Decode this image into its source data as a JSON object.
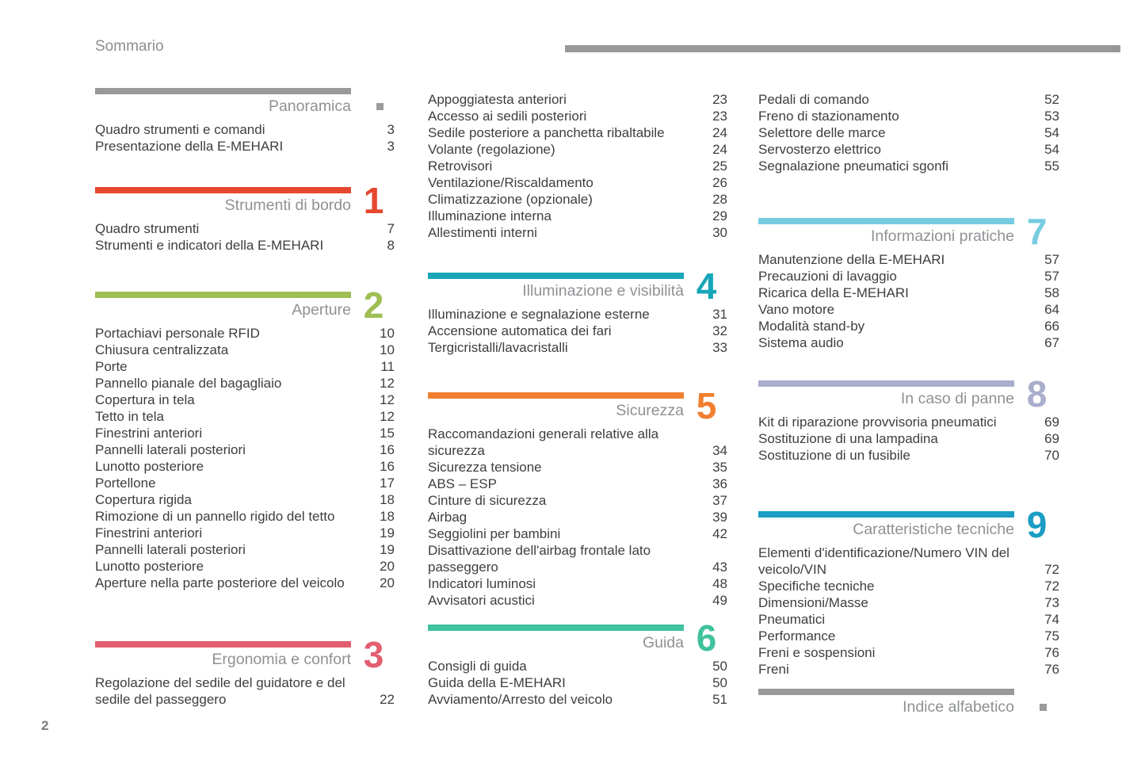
{
  "header": {
    "title": "Sommario"
  },
  "footer": {
    "page_number": "2"
  },
  "colors": {
    "rule_gray": "#97989a",
    "title_gray": "#8e9194",
    "text_dark": "#3d3e40"
  },
  "columns": [
    {
      "blocks": [
        {
          "type": "section",
          "id": "panoramica",
          "title": "Panoramica",
          "marker": "square",
          "accent": "#98999B",
          "items": [
            {
              "label": "Quadro strumenti e comandi",
              "page": "3"
            },
            {
              "label": "Presentazione della E-MEHARI",
              "page": "3"
            }
          ]
        },
        {
          "type": "section",
          "id": "strumenti-di-bordo",
          "title": "Strumenti di bordo",
          "number": "1",
          "accent": "#E5472F",
          "items": [
            {
              "label": "Quadro strumenti",
              "page": "7"
            },
            {
              "label": "Strumenti e indicatori della E-MEHARI",
              "page": "8"
            }
          ]
        },
        {
          "type": "section",
          "id": "aperture",
          "title": "Aperture",
          "number": "2",
          "accent": "#9FBE53",
          "items": [
            {
              "label": "Portachiavi personale RFID",
              "page": "10"
            },
            {
              "label": "Chiusura centralizzata",
              "page": "10"
            },
            {
              "label": "Porte",
              "page": "11"
            },
            {
              "label": "Pannello pianale del bagagliaio",
              "page": "12"
            },
            {
              "label": "Copertura in tela",
              "page": "12"
            },
            {
              "label": "Tetto in tela",
              "page": "12"
            },
            {
              "label": "Finestrini anteriori",
              "page": "15"
            },
            {
              "label": "Pannelli laterali posteriori",
              "page": "16"
            },
            {
              "label": "Lunotto posteriore",
              "page": "16"
            },
            {
              "label": "Portellone",
              "page": "17"
            },
            {
              "label": "Copertura rigida",
              "page": "18"
            },
            {
              "label": "Rimozione di un pannello rigido del tetto",
              "page": "18"
            },
            {
              "label": "Finestrini anteriori",
              "page": "19"
            },
            {
              "label": "Pannelli laterali posteriori",
              "page": "19"
            },
            {
              "label": "Lunotto posteriore",
              "page": "20"
            },
            {
              "label": "Aperture nella parte posteriore del veicolo",
              "page": "20"
            }
          ]
        },
        {
          "type": "section",
          "id": "ergonomia-e-confort",
          "title": "Ergonomia e confort",
          "number": "3",
          "accent": "#E25E70",
          "items": [
            {
              "label": "Regolazione del sedile del guidatore e del sedile del passeggero",
              "page": "22"
            }
          ]
        }
      ]
    },
    {
      "blocks": [
        {
          "type": "items",
          "items": [
            {
              "label": "Appoggiatesta anteriori",
              "page": "23"
            },
            {
              "label": "Accesso ai sedili posteriori",
              "page": "23"
            },
            {
              "label": "Sedile posteriore a panchetta ribaltabile",
              "page": "24"
            },
            {
              "label": "Volante (regolazione)",
              "page": "24"
            },
            {
              "label": "Retrovisori",
              "page": "25"
            },
            {
              "label": "Ventilazione/Riscaldamento",
              "page": "26"
            },
            {
              "label": "Climatizzazione (opzionale)",
              "page": "28"
            },
            {
              "label": "Illuminazione interna",
              "page": "29"
            },
            {
              "label": "Allestimenti interni",
              "page": "30"
            }
          ]
        },
        {
          "type": "section",
          "id": "illuminazione-e-visibilita",
          "title": "Illuminazione e visibilità",
          "number": "4",
          "accent": "#15A6B8",
          "items": [
            {
              "label": "Illuminazione e segnalazione esterne",
              "page": "31"
            },
            {
              "label": "Accensione automatica dei fari",
              "page": "32"
            },
            {
              "label": "Tergicristalli/lavacristalli",
              "page": "33"
            }
          ]
        },
        {
          "type": "section",
          "id": "sicurezza",
          "title": "Sicurezza",
          "number": "5",
          "accent": "#F0802F",
          "items": [
            {
              "label": "Raccomandazioni generali relative alla sicurezza",
              "page": "34"
            },
            {
              "label": "Sicurezza tensione",
              "page": "35"
            },
            {
              "label": "ABS – ESP",
              "page": "36"
            },
            {
              "label": "Cinture di sicurezza",
              "page": "37"
            },
            {
              "label": "Airbag",
              "page": "39"
            },
            {
              "label": "Seggiolini per bambini",
              "page": "42"
            },
            {
              "label": "Disattivazione dell'airbag frontale lato passeggero",
              "page": "43"
            },
            {
              "label": "Indicatori luminosi",
              "page": "48"
            },
            {
              "label": "Avvisatori acustici",
              "page": "49"
            }
          ]
        },
        {
          "type": "section",
          "id": "guida",
          "title": "Guida",
          "number": "6",
          "accent": "#3FC29D",
          "items": [
            {
              "label": "Consigli di guida",
              "page": "50"
            },
            {
              "label": "Guida della E-MEHARI",
              "page": "50"
            },
            {
              "label": "Avviamento/Arresto del veicolo",
              "page": "51"
            }
          ]
        }
      ]
    },
    {
      "blocks": [
        {
          "type": "items",
          "items": [
            {
              "label": "Pedali di comando",
              "page": "52"
            },
            {
              "label": "Freno di stazionamento",
              "page": "53"
            },
            {
              "label": "Selettore delle marce",
              "page": "54"
            },
            {
              "label": "Servosterzo elettrico",
              "page": "54"
            },
            {
              "label": "Segnalazione pneumatici sgonfi",
              "page": "55"
            }
          ]
        },
        {
          "type": "section",
          "id": "informazioni-pratiche",
          "title": "Informazioni pratiche",
          "number": "7",
          "accent": "#76CCE0",
          "items": [
            {
              "label": "Manutenzione della E-MEHARI",
              "page": "57"
            },
            {
              "label": "Precauzioni di lavaggio",
              "page": "57"
            },
            {
              "label": "Ricarica della E-MEHARI",
              "page": "58"
            },
            {
              "label": "Vano motore",
              "page": "64"
            },
            {
              "label": "Modalità stand-by",
              "page": "66"
            },
            {
              "label": "Sistema audio",
              "page": "67"
            }
          ]
        },
        {
          "type": "section",
          "id": "in-caso-di-panne",
          "title": "In caso di panne",
          "number": "8",
          "accent": "#A9AECC",
          "items": [
            {
              "label": "Kit di riparazione provvisoria pneumatici",
              "page": "69"
            },
            {
              "label": "Sostituzione di una lampadina",
              "page": "69"
            },
            {
              "label": "Sostituzione di un fusibile",
              "page": "70"
            }
          ]
        },
        {
          "type": "section",
          "id": "caratteristiche-tecniche",
          "title": "Caratteristiche tecniche",
          "number": "9",
          "accent": "#1B9DC4",
          "items": [
            {
              "label": "Elementi d'identificazione/Numero VIN del veicolo/VIN",
              "page": "72"
            },
            {
              "label": "Specifiche tecniche",
              "page": "72"
            },
            {
              "label": "Dimensioni/Masse",
              "page": "73"
            },
            {
              "label": "Pneumatici",
              "page": "74"
            },
            {
              "label": "Performance",
              "page": "75"
            },
            {
              "label": "Freni e sospensioni",
              "page": "76"
            },
            {
              "label": "Freni",
              "page": "76"
            }
          ]
        },
        {
          "type": "section",
          "id": "indice-alfabetico",
          "title": "Indice alfabetico",
          "marker": "square",
          "accent": "#98999B"
        }
      ]
    }
  ]
}
